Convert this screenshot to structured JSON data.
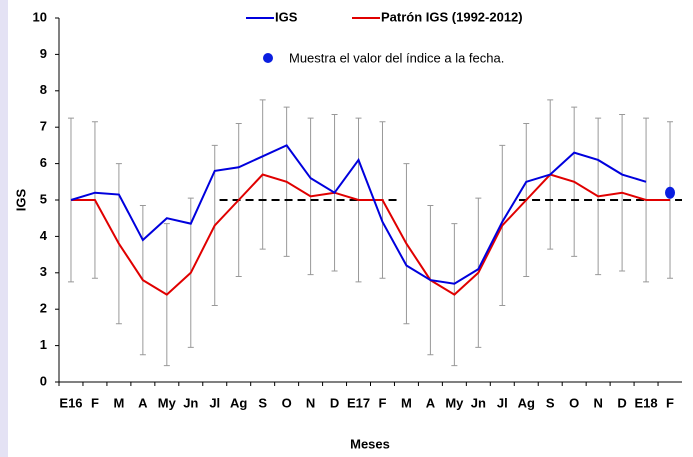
{
  "chart_data": {
    "type": "line",
    "y_label": "IGS",
    "x_label": "Meses",
    "categories": [
      "E16",
      "F",
      "M",
      "A",
      "My",
      "Jn",
      "Jl",
      "Ag",
      "S",
      "O",
      "N",
      "D",
      "E17",
      "F",
      "M",
      "A",
      "My",
      "Jn",
      "Jl",
      "Ag",
      "S",
      "O",
      "N",
      "D",
      "E18",
      "F"
    ],
    "series": [
      {
        "name": "IGS",
        "color": "#0000dd",
        "values": [
          5.0,
          5.2,
          5.15,
          3.9,
          4.5,
          4.35,
          5.8,
          5.9,
          6.2,
          6.5,
          5.6,
          5.2,
          6.1,
          4.4,
          3.2,
          2.8,
          2.7,
          3.1,
          4.4,
          5.5,
          5.7,
          6.3,
          6.1,
          5.7,
          5.5,
          null
        ]
      },
      {
        "name": "Patrón IGS (1992-2012)",
        "color": "#e00000",
        "values": [
          5.0,
          5.0,
          3.8,
          2.8,
          2.4,
          3.0,
          4.3,
          5.0,
          5.7,
          5.5,
          5.1,
          5.2,
          5.0,
          5.0,
          3.8,
          2.8,
          2.4,
          3.0,
          4.3,
          5.0,
          5.7,
          5.5,
          5.1,
          5.2,
          5.0,
          5.0
        ],
        "errors": [
          2.25,
          2.15,
          2.2,
          2.05,
          1.95,
          2.05,
          2.2,
          2.1,
          2.05,
          2.05,
          2.15,
          2.15,
          2.25,
          2.15,
          2.2,
          2.05,
          1.95,
          2.05,
          2.2,
          2.1,
          2.05,
          2.05,
          2.15,
          2.15,
          2.25,
          2.15
        ]
      }
    ],
    "reference_value": 5,
    "current": {
      "value": 5.2,
      "label": "Muestra el valor del índice a la fecha.",
      "color": "#0a1ee0"
    },
    "ylim": [
      0,
      10
    ],
    "yticks": [
      0,
      1,
      2,
      3,
      4,
      5,
      6,
      7,
      8,
      9,
      10
    ]
  }
}
